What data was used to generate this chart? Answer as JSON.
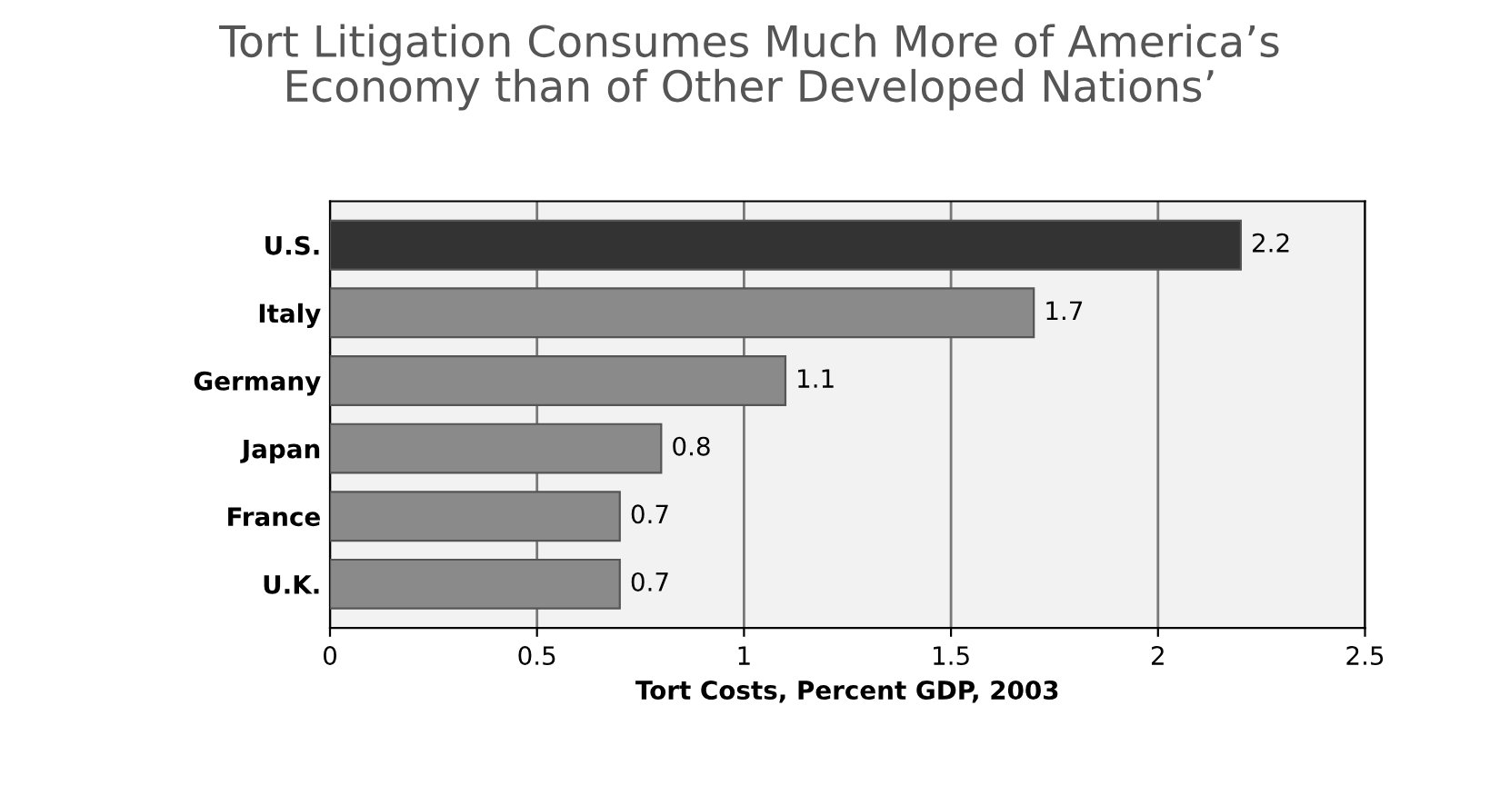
{
  "chart_data": {
    "type": "bar",
    "orientation": "horizontal",
    "title": "Tort Litigation Consumes Much More of America’s\nEconomy than of Other Developed Nations’",
    "xlabel": "Tort Costs, Percent GDP, 2003",
    "categories": [
      "U.S.",
      "Italy",
      "Germany",
      "Japan",
      "France",
      "U.K."
    ],
    "values": [
      2.2,
      1.7,
      1.1,
      0.8,
      0.7,
      0.7
    ],
    "colors": [
      "#333333",
      "#8a8a8a",
      "#8a8a8a",
      "#8a8a8a",
      "#8a8a8a",
      "#8a8a8a"
    ],
    "xlim": [
      0,
      2.5
    ],
    "xticks": [
      0,
      0.5,
      1,
      1.5,
      2,
      2.5
    ],
    "grid": "x",
    "data_labels": true
  }
}
